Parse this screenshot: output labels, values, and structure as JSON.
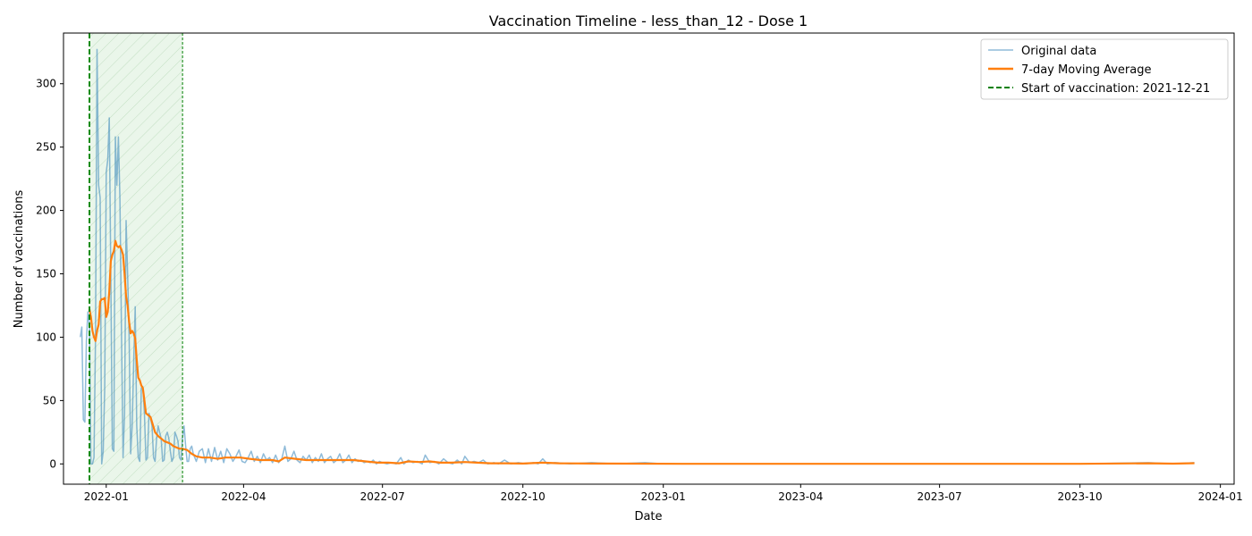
{
  "chart_data": {
    "type": "line",
    "title": "Vaccination Timeline - less_than_12 - Dose 1",
    "xlabel": "Date",
    "ylabel": "Number of vaccinations",
    "xlim": [
      "2021-12-04",
      "2024-01-10"
    ],
    "ylim": [
      -16,
      340
    ],
    "grid": false,
    "legend_position": "top-right",
    "x_ticks": [
      "2022-01",
      "2022-04",
      "2022-07",
      "2022-10",
      "2023-01",
      "2023-04",
      "2023-07",
      "2023-10",
      "2024-01"
    ],
    "y_ticks": [
      0,
      50,
      100,
      150,
      200,
      250,
      300
    ],
    "vaccination_start": "2021-12-21",
    "shaded_period": [
      "2021-12-21",
      "2022-02-20"
    ],
    "colors": {
      "original": "#1f77b4",
      "moving_average": "#ff7f0e",
      "start_line": "#008000",
      "shade": "#d8eed8"
    },
    "legend": [
      {
        "key": "original",
        "label": "Original data"
      },
      {
        "key": "moving_average",
        "label": "7-day Moving Average"
      },
      {
        "key": "start",
        "label": "Start of vaccination: 2021-12-21"
      }
    ],
    "series": [
      {
        "name": "Original data",
        "points": [
          [
            "2021-12-15",
            100
          ],
          [
            "2021-12-16",
            108
          ],
          [
            "2021-12-17",
            35
          ],
          [
            "2021-12-18",
            33
          ],
          [
            "2021-12-19",
            97
          ],
          [
            "2021-12-20",
            120
          ],
          [
            "2021-12-21",
            110
          ],
          [
            "2021-12-22",
            0
          ],
          [
            "2021-12-23",
            0
          ],
          [
            "2021-12-24",
            5
          ],
          [
            "2021-12-25",
            100
          ],
          [
            "2021-12-26",
            327
          ],
          [
            "2021-12-27",
            220
          ],
          [
            "2021-12-28",
            210
          ],
          [
            "2021-12-29",
            0
          ],
          [
            "2021-12-30",
            10
          ],
          [
            "2021-12-31",
            60
          ],
          [
            "2022-01-01",
            230
          ],
          [
            "2022-01-02",
            240
          ],
          [
            "2022-01-03",
            273
          ],
          [
            "2022-01-04",
            150
          ],
          [
            "2022-01-05",
            12
          ],
          [
            "2022-01-06",
            10
          ],
          [
            "2022-01-07",
            258
          ],
          [
            "2022-01-08",
            220
          ],
          [
            "2022-01-09",
            258
          ],
          [
            "2022-01-10",
            210
          ],
          [
            "2022-01-11",
            100
          ],
          [
            "2022-01-12",
            5
          ],
          [
            "2022-01-13",
            40
          ],
          [
            "2022-01-14",
            192
          ],
          [
            "2022-01-15",
            150
          ],
          [
            "2022-01-16",
            100
          ],
          [
            "2022-01-17",
            8
          ],
          [
            "2022-01-18",
            30
          ],
          [
            "2022-01-19",
            80
          ],
          [
            "2022-01-20",
            124
          ],
          [
            "2022-01-21",
            30
          ],
          [
            "2022-01-22",
            5
          ],
          [
            "2022-01-23",
            2
          ],
          [
            "2022-01-24",
            60
          ],
          [
            "2022-01-25",
            61
          ],
          [
            "2022-01-26",
            40
          ],
          [
            "2022-01-27",
            3
          ],
          [
            "2022-01-28",
            5
          ],
          [
            "2022-01-29",
            40
          ],
          [
            "2022-01-30",
            36
          ],
          [
            "2022-01-31",
            30
          ],
          [
            "2022-02-01",
            5
          ],
          [
            "2022-02-02",
            2
          ],
          [
            "2022-02-03",
            20
          ],
          [
            "2022-02-04",
            30
          ],
          [
            "2022-02-05",
            25
          ],
          [
            "2022-02-06",
            20
          ],
          [
            "2022-02-07",
            2
          ],
          [
            "2022-02-08",
            3
          ],
          [
            "2022-02-09",
            22
          ],
          [
            "2022-02-10",
            25
          ],
          [
            "2022-02-11",
            20
          ],
          [
            "2022-02-12",
            10
          ],
          [
            "2022-02-13",
            2
          ],
          [
            "2022-02-14",
            5
          ],
          [
            "2022-02-15",
            25
          ],
          [
            "2022-02-16",
            22
          ],
          [
            "2022-02-17",
            18
          ],
          [
            "2022-02-18",
            5
          ],
          [
            "2022-02-19",
            3
          ],
          [
            "2022-02-20",
            20
          ],
          [
            "2022-02-21",
            30
          ],
          [
            "2022-02-22",
            15
          ],
          [
            "2022-02-23",
            2
          ],
          [
            "2022-02-24",
            2
          ],
          [
            "2022-02-25",
            12
          ],
          [
            "2022-02-26",
            14
          ],
          [
            "2022-02-27",
            8
          ],
          [
            "2022-03-01",
            2
          ],
          [
            "2022-03-03",
            10
          ],
          [
            "2022-03-05",
            12
          ],
          [
            "2022-03-07",
            1
          ],
          [
            "2022-03-09",
            12
          ],
          [
            "2022-03-11",
            2
          ],
          [
            "2022-03-13",
            13
          ],
          [
            "2022-03-15",
            3
          ],
          [
            "2022-03-17",
            10
          ],
          [
            "2022-03-19",
            1
          ],
          [
            "2022-03-21",
            12
          ],
          [
            "2022-03-23",
            8
          ],
          [
            "2022-03-25",
            2
          ],
          [
            "2022-03-27",
            6
          ],
          [
            "2022-03-29",
            11
          ],
          [
            "2022-03-31",
            2
          ],
          [
            "2022-04-02",
            1
          ],
          [
            "2022-04-04",
            5
          ],
          [
            "2022-04-06",
            10
          ],
          [
            "2022-04-08",
            2
          ],
          [
            "2022-04-10",
            6
          ],
          [
            "2022-04-12",
            1
          ],
          [
            "2022-04-14",
            8
          ],
          [
            "2022-04-16",
            3
          ],
          [
            "2022-04-18",
            5
          ],
          [
            "2022-04-20",
            1
          ],
          [
            "2022-04-22",
            7
          ],
          [
            "2022-04-24",
            1
          ],
          [
            "2022-04-26",
            4
          ],
          [
            "2022-04-28",
            14
          ],
          [
            "2022-04-30",
            2
          ],
          [
            "2022-05-02",
            4
          ],
          [
            "2022-05-04",
            10
          ],
          [
            "2022-05-06",
            3
          ],
          [
            "2022-05-08",
            1
          ],
          [
            "2022-05-10",
            6
          ],
          [
            "2022-05-12",
            3
          ],
          [
            "2022-05-14",
            7
          ],
          [
            "2022-05-16",
            1
          ],
          [
            "2022-05-18",
            5
          ],
          [
            "2022-05-20",
            2
          ],
          [
            "2022-05-22",
            8
          ],
          [
            "2022-05-24",
            1
          ],
          [
            "2022-05-26",
            4
          ],
          [
            "2022-05-28",
            6
          ],
          [
            "2022-05-30",
            1
          ],
          [
            "2022-06-01",
            3
          ],
          [
            "2022-06-03",
            8
          ],
          [
            "2022-06-05",
            1
          ],
          [
            "2022-06-07",
            3
          ],
          [
            "2022-06-09",
            7
          ],
          [
            "2022-06-11",
            1
          ],
          [
            "2022-06-13",
            4
          ],
          [
            "2022-06-15",
            2
          ],
          [
            "2022-06-17",
            3
          ],
          [
            "2022-06-19",
            1
          ],
          [
            "2022-06-21",
            2
          ],
          [
            "2022-06-23",
            1
          ],
          [
            "2022-06-25",
            3
          ],
          [
            "2022-06-27",
            0
          ],
          [
            "2022-06-29",
            2
          ],
          [
            "2022-07-01",
            1
          ],
          [
            "2022-07-04",
            0
          ],
          [
            "2022-07-07",
            1
          ],
          [
            "2022-07-10",
            0
          ],
          [
            "2022-07-13",
            5
          ],
          [
            "2022-07-15",
            0
          ],
          [
            "2022-07-18",
            3
          ],
          [
            "2022-07-21",
            1
          ],
          [
            "2022-07-24",
            2
          ],
          [
            "2022-07-27",
            0
          ],
          [
            "2022-07-29",
            7
          ],
          [
            "2022-08-01",
            1
          ],
          [
            "2022-08-04",
            2
          ],
          [
            "2022-08-07",
            0
          ],
          [
            "2022-08-10",
            4
          ],
          [
            "2022-08-13",
            1
          ],
          [
            "2022-08-16",
            0
          ],
          [
            "2022-08-19",
            3
          ],
          [
            "2022-08-22",
            0
          ],
          [
            "2022-08-24",
            6
          ],
          [
            "2022-08-27",
            1
          ],
          [
            "2022-08-30",
            2
          ],
          [
            "2022-09-02",
            1
          ],
          [
            "2022-09-05",
            3
          ],
          [
            "2022-09-08",
            0
          ],
          [
            "2022-09-12",
            1
          ],
          [
            "2022-09-15",
            0
          ],
          [
            "2022-09-19",
            3
          ],
          [
            "2022-09-23",
            0
          ],
          [
            "2022-09-28",
            1
          ],
          [
            "2022-10-03",
            0
          ],
          [
            "2022-10-08",
            1
          ],
          [
            "2022-10-11",
            0
          ],
          [
            "2022-10-14",
            4
          ],
          [
            "2022-10-17",
            0
          ],
          [
            "2022-10-22",
            1
          ],
          [
            "2022-11-01",
            0
          ],
          [
            "2022-11-15",
            1
          ],
          [
            "2022-12-01",
            0
          ],
          [
            "2022-12-20",
            1
          ],
          [
            "2023-01-01",
            0
          ],
          [
            "2023-02-15",
            0
          ],
          [
            "2023-04-01",
            0
          ],
          [
            "2023-06-01",
            0
          ],
          [
            "2023-08-01",
            0
          ],
          [
            "2023-10-01",
            0
          ],
          [
            "2023-11-15",
            1
          ],
          [
            "2023-12-01",
            0
          ],
          [
            "2023-12-15",
            1
          ]
        ]
      },
      {
        "name": "7-day Moving Average",
        "points": [
          [
            "2021-12-21",
            122
          ],
          [
            "2021-12-22",
            116
          ],
          [
            "2021-12-23",
            105
          ],
          [
            "2021-12-24",
            100
          ],
          [
            "2021-12-25",
            97
          ],
          [
            "2021-12-26",
            105
          ],
          [
            "2021-12-27",
            110
          ],
          [
            "2021-12-28",
            128
          ],
          [
            "2021-12-29",
            130
          ],
          [
            "2021-12-30",
            130
          ],
          [
            "2021-12-31",
            131
          ],
          [
            "2022-01-01",
            116
          ],
          [
            "2022-01-02",
            120
          ],
          [
            "2022-01-03",
            136
          ],
          [
            "2022-01-04",
            160
          ],
          [
            "2022-01-05",
            165
          ],
          [
            "2022-01-06",
            168
          ],
          [
            "2022-01-07",
            176
          ],
          [
            "2022-01-08",
            172
          ],
          [
            "2022-01-09",
            171
          ],
          [
            "2022-01-10",
            172
          ],
          [
            "2022-01-11",
            169
          ],
          [
            "2022-01-12",
            165
          ],
          [
            "2022-01-13",
            150
          ],
          [
            "2022-01-14",
            132
          ],
          [
            "2022-01-15",
            125
          ],
          [
            "2022-01-16",
            112
          ],
          [
            "2022-01-17",
            103
          ],
          [
            "2022-01-18",
            105
          ],
          [
            "2022-01-19",
            103
          ],
          [
            "2022-01-20",
            99
          ],
          [
            "2022-01-21",
            82
          ],
          [
            "2022-01-22",
            68
          ],
          [
            "2022-01-23",
            66
          ],
          [
            "2022-01-24",
            62
          ],
          [
            "2022-01-25",
            60
          ],
          [
            "2022-01-26",
            50
          ],
          [
            "2022-01-27",
            40
          ],
          [
            "2022-01-28",
            39
          ],
          [
            "2022-01-29",
            38
          ],
          [
            "2022-01-30",
            37
          ],
          [
            "2022-01-31",
            33
          ],
          [
            "2022-02-02",
            25
          ],
          [
            "2022-02-04",
            22
          ],
          [
            "2022-02-06",
            20
          ],
          [
            "2022-02-08",
            18
          ],
          [
            "2022-02-10",
            17
          ],
          [
            "2022-02-12",
            16
          ],
          [
            "2022-02-14",
            14
          ],
          [
            "2022-02-16",
            13
          ],
          [
            "2022-02-18",
            12
          ],
          [
            "2022-02-20",
            12
          ],
          [
            "2022-02-23",
            11
          ],
          [
            "2022-02-26",
            8
          ],
          [
            "2022-03-01",
            6
          ],
          [
            "2022-03-05",
            5
          ],
          [
            "2022-03-10",
            5
          ],
          [
            "2022-03-15",
            4
          ],
          [
            "2022-03-20",
            5
          ],
          [
            "2022-03-25",
            5
          ],
          [
            "2022-03-30",
            5
          ],
          [
            "2022-04-05",
            4
          ],
          [
            "2022-04-12",
            3
          ],
          [
            "2022-04-20",
            3
          ],
          [
            "2022-04-24",
            2
          ],
          [
            "2022-04-28",
            5
          ],
          [
            "2022-05-05",
            4
          ],
          [
            "2022-05-12",
            3
          ],
          [
            "2022-05-20",
            3
          ],
          [
            "2022-05-28",
            3
          ],
          [
            "2022-06-05",
            3
          ],
          [
            "2022-06-12",
            3
          ],
          [
            "2022-06-20",
            2
          ],
          [
            "2022-06-28",
            1
          ],
          [
            "2022-07-05",
            1
          ],
          [
            "2022-07-12",
            0.5
          ],
          [
            "2022-07-18",
            2
          ],
          [
            "2022-07-25",
            1.5
          ],
          [
            "2022-08-01",
            2
          ],
          [
            "2022-08-08",
            1
          ],
          [
            "2022-08-15",
            1
          ],
          [
            "2022-08-24",
            1.5
          ],
          [
            "2022-09-01",
            1
          ],
          [
            "2022-09-10",
            0.5
          ],
          [
            "2022-09-20",
            0.5
          ],
          [
            "2022-10-01",
            0.3
          ],
          [
            "2022-10-14",
            1
          ],
          [
            "2022-10-25",
            0.5
          ],
          [
            "2022-11-15",
            0.3
          ],
          [
            "2022-12-15",
            0.2
          ],
          [
            "2023-01-15",
            0.1
          ],
          [
            "2023-04-01",
            0.1
          ],
          [
            "2023-07-01",
            0.1
          ],
          [
            "2023-10-01",
            0.1
          ],
          [
            "2023-11-15",
            0.5
          ],
          [
            "2023-12-01",
            0.2
          ],
          [
            "2023-12-15",
            0.6
          ]
        ]
      }
    ]
  }
}
